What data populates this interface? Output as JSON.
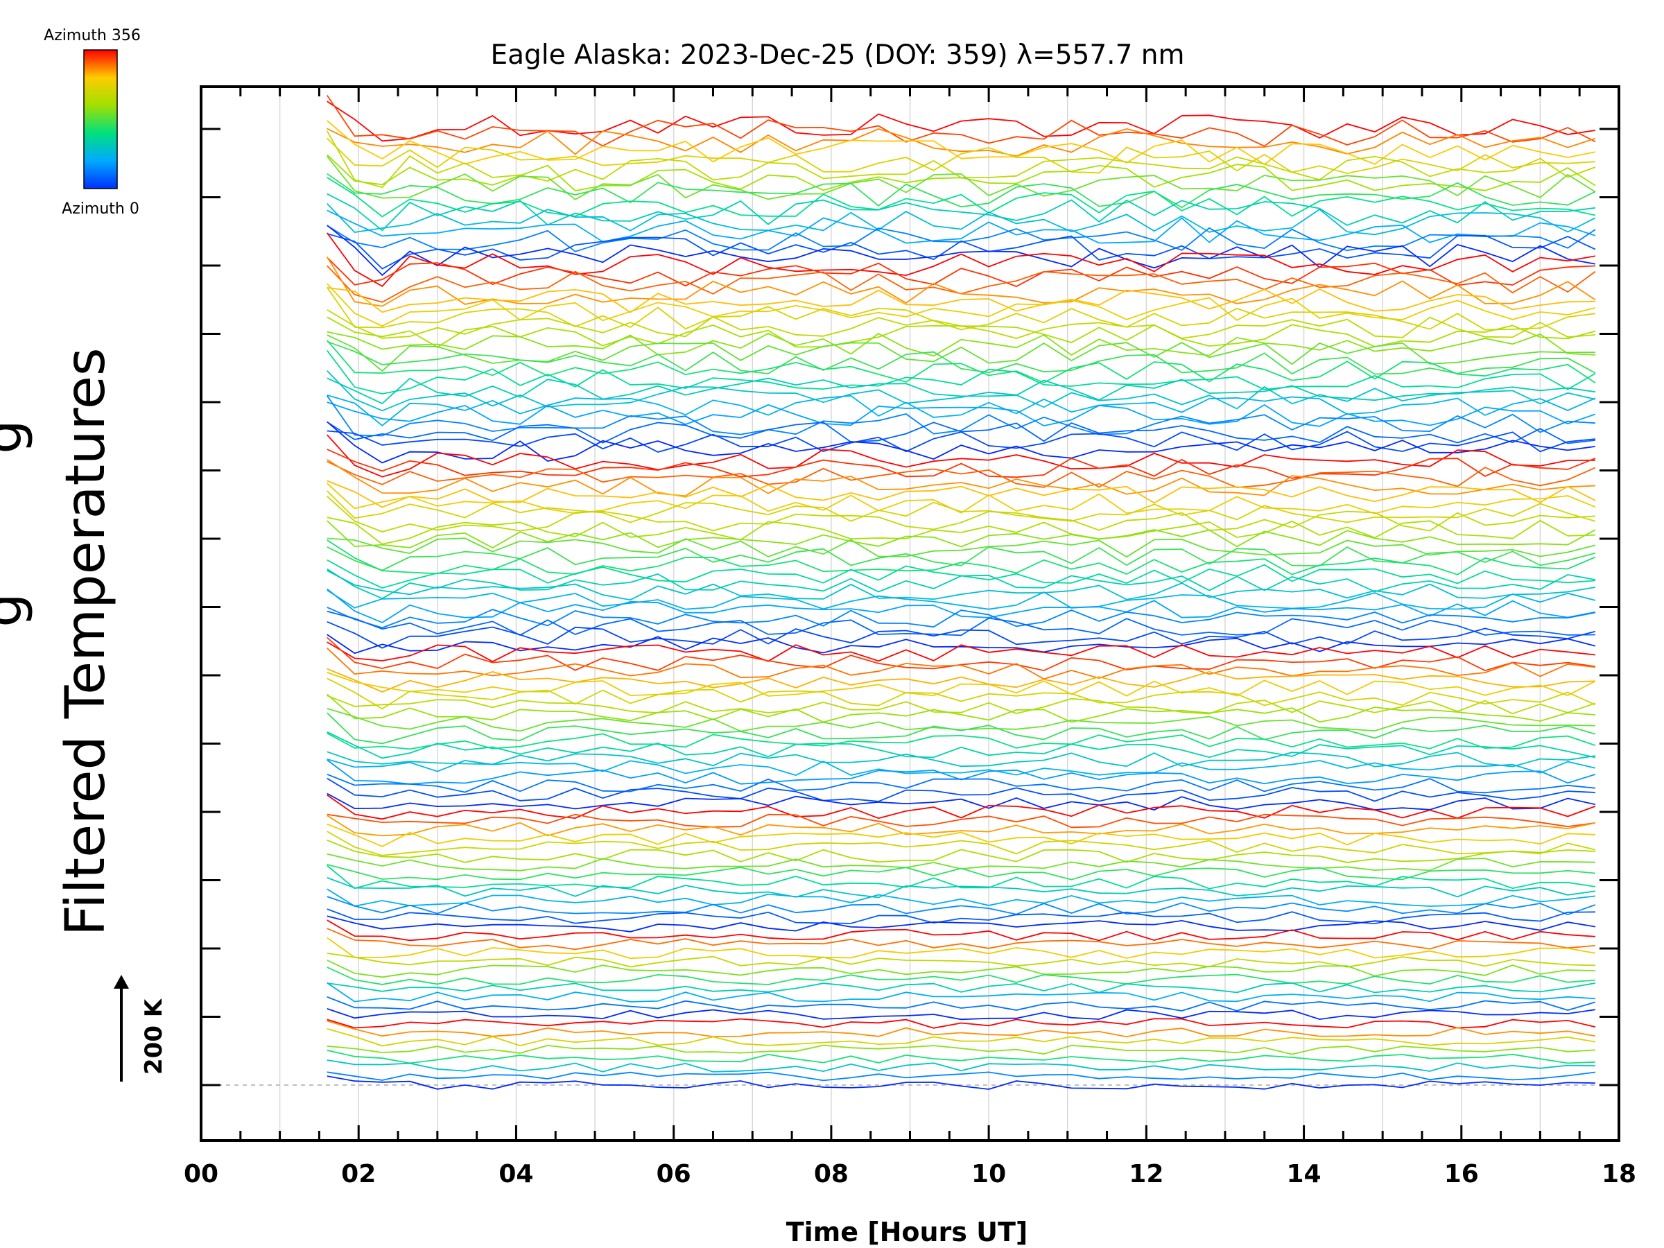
{
  "chart_data": {
    "type": "line",
    "title": "Eagle Alaska: 2023-Dec-25 (DOY: 359) λ=557.7 nm",
    "xlabel": "Time [Hours UT]",
    "ylabel": "Filtered Temperatures",
    "ylabel_cutoff": "g",
    "x_ticks": [
      "00",
      "02",
      "04",
      "06",
      "08",
      "10",
      "12",
      "14",
      "16",
      "18"
    ],
    "xlim": [
      0,
      18
    ],
    "x_start": 1.6,
    "x_end": 17.75,
    "sample_interval_hours": 0.35,
    "num_series": 110,
    "series_spacing_kelvin": 40,
    "scale_bar": "200 K",
    "color_scale": {
      "top_label": "Azimuth 356",
      "bottom_label": "Azimuth 0",
      "min": 0,
      "max": 356,
      "colors": [
        "#0000ff",
        "#00c8ff",
        "#00e0a0",
        "#a0e000",
        "#ffd000",
        "#ff0000"
      ]
    },
    "grid": true
  }
}
